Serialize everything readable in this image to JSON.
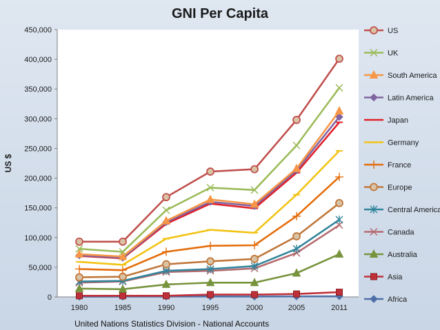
{
  "chart_data": {
    "type": "line",
    "title": "GNI Per Capita",
    "xlabel": "",
    "ylabel": "US $",
    "source": "United Nations Statistics Division - National Accounts",
    "categories": [
      "1980",
      "1985",
      "1990",
      "1995",
      "2000",
      "2005",
      "2011"
    ],
    "ylim": [
      0,
      450000
    ],
    "yticks": [
      0,
      50000,
      100000,
      150000,
      200000,
      250000,
      300000,
      350000,
      400000,
      450000
    ],
    "ytick_labels": [
      "0",
      "50,000",
      "100,000",
      "150,000",
      "200,000",
      "250,000",
      "300,000",
      "350,000",
      "400,000",
      "450,000"
    ],
    "legend_position": "right",
    "grid": false,
    "series": [
      {
        "name": "US",
        "color": "#c0504d",
        "marker": "circle",
        "values": [
          93000,
          93000,
          168000,
          211000,
          215000,
          298000,
          401000
        ]
      },
      {
        "name": "UK",
        "color": "#9bbb59",
        "marker": "x",
        "values": [
          81000,
          76000,
          146000,
          184000,
          180000,
          255000,
          352000
        ]
      },
      {
        "name": "South America",
        "color": "#f79646",
        "marker": "triangle",
        "values": [
          72000,
          68000,
          128000,
          164000,
          156000,
          216000,
          313000
        ]
      },
      {
        "name": "Latin America",
        "color": "#8064a2",
        "marker": "diamond",
        "values": [
          70000,
          66000,
          126000,
          160000,
          153000,
          213000,
          303000
        ]
      },
      {
        "name": "Japan",
        "color": "#e0202a",
        "marker": "dash",
        "values": [
          69000,
          65000,
          123000,
          157000,
          149000,
          209000,
          294000
        ]
      },
      {
        "name": "Germany",
        "color": "#f2c314",
        "marker": "dash",
        "values": [
          59000,
          54000,
          98000,
          113000,
          108000,
          172000,
          246000
        ]
      },
      {
        "name": "France",
        "color": "#e46c0a",
        "marker": "plus",
        "values": [
          47000,
          45000,
          76000,
          86000,
          87000,
          136000,
          202000
        ]
      },
      {
        "name": "Europe",
        "color": "#c0773a",
        "marker": "circle",
        "values": [
          33000,
          34000,
          55000,
          60000,
          64000,
          102000,
          158000
        ]
      },
      {
        "name": "Central America",
        "color": "#31849b",
        "marker": "star",
        "values": [
          26000,
          27000,
          44000,
          47000,
          52000,
          81000,
          130000
        ]
      },
      {
        "name": "Canada",
        "color": "#b46a6f",
        "marker": "x",
        "values": [
          24000,
          26000,
          42000,
          44000,
          48000,
          74000,
          121000
        ]
      },
      {
        "name": "Australia",
        "color": "#77933c",
        "marker": "triangle",
        "values": [
          14000,
          13000,
          21000,
          24000,
          24000,
          40000,
          72000
        ]
      },
      {
        "name": "Asia",
        "color": "#c0303a",
        "marker": "square",
        "values": [
          2000,
          2000,
          2000,
          4000,
          4000,
          5000,
          8000
        ]
      },
      {
        "name": "Africa",
        "color": "#4f6fa8",
        "marker": "diamond",
        "values": [
          500,
          600,
          700,
          800,
          700,
          900,
          1200
        ]
      }
    ]
  }
}
